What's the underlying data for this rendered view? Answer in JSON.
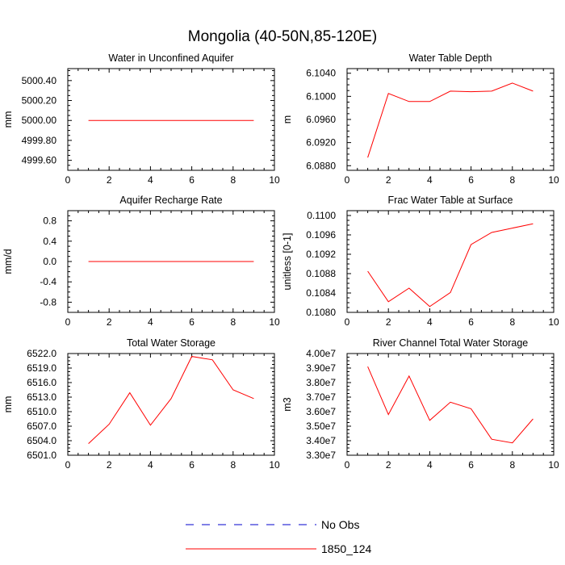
{
  "title": "Mongolia (40-50N,85-120E)",
  "legend": [
    {
      "label": "No Obs",
      "color": "#0000cc",
      "dashed": true
    },
    {
      "label": "1850_124",
      "color": "#ff0000",
      "dashed": false
    }
  ],
  "chart_data": [
    {
      "type": "line",
      "title": "Water in Unconfined Aquifer",
      "ylabel": "mm",
      "xlim": [
        0,
        10
      ],
      "ylim": [
        4999.5,
        5000.52
      ],
      "xticks": [
        0,
        2,
        4,
        6,
        8,
        10
      ],
      "xtick_labels": [
        "0",
        "2",
        "4",
        "6",
        "8",
        "10"
      ],
      "yticks": [
        4999.6,
        4999.8,
        5000.0,
        5000.2,
        5000.4
      ],
      "ytick_labels": [
        "4999.60",
        "4999.80",
        "5000.00",
        "5000.20",
        "5000.40"
      ],
      "series": [
        {
          "name": "1850_124",
          "x": [
            1,
            2,
            3,
            4,
            5,
            6,
            7,
            8,
            9
          ],
          "values": [
            5000.0,
            5000.0,
            5000.0,
            5000.0,
            5000.0,
            5000.0,
            5000.0,
            5000.0,
            5000.0
          ]
        }
      ]
    },
    {
      "type": "line",
      "title": "Water Table Depth",
      "ylabel": "m",
      "xlim": [
        0,
        10
      ],
      "ylim": [
        6.0872,
        6.1048
      ],
      "xticks": [
        0,
        2,
        4,
        6,
        8,
        10
      ],
      "xtick_labels": [
        "0",
        "2",
        "4",
        "6",
        "8",
        "10"
      ],
      "yticks": [
        6.088,
        6.092,
        6.096,
        6.1,
        6.104
      ],
      "ytick_labels": [
        "6.0880",
        "6.0920",
        "6.0960",
        "6.1000",
        "6.1040"
      ],
      "series": [
        {
          "name": "1850_124",
          "x": [
            1,
            2,
            3,
            4,
            5,
            6,
            7,
            8,
            9
          ],
          "values": [
            6.0894,
            6.1005,
            6.0991,
            6.0991,
            6.1009,
            6.1008,
            6.1009,
            6.1023,
            6.1009
          ]
        }
      ]
    },
    {
      "type": "line",
      "title": "Aquifer Recharge Rate",
      "ylabel": "mm/d",
      "xlim": [
        0,
        10
      ],
      "ylim": [
        -1.0,
        1.0
      ],
      "xticks": [
        0,
        2,
        4,
        6,
        8,
        10
      ],
      "xtick_labels": [
        "0",
        "2",
        "4",
        "6",
        "8",
        "10"
      ],
      "yticks": [
        -0.8,
        -0.4,
        0.0,
        0.4,
        0.8
      ],
      "ytick_labels": [
        "-0.8",
        "-0.4",
        "0.0",
        "0.4",
        "0.8"
      ],
      "series": [
        {
          "name": "1850_124",
          "x": [
            1,
            2,
            3,
            4,
            5,
            6,
            7,
            8,
            9
          ],
          "values": [
            0,
            0,
            0,
            0,
            0,
            0,
            0,
            0,
            0
          ]
        }
      ]
    },
    {
      "type": "line",
      "title": "Frac Water Table at Surface",
      "ylabel": "unitless [0-1]",
      "xlim": [
        0,
        10
      ],
      "ylim": [
        0.108,
        0.1101
      ],
      "xticks": [
        0,
        2,
        4,
        6,
        8,
        10
      ],
      "xtick_labels": [
        "0",
        "2",
        "4",
        "6",
        "8",
        "10"
      ],
      "yticks": [
        0.108,
        0.1084,
        0.1088,
        0.1092,
        0.1096,
        0.11
      ],
      "ytick_labels": [
        "0.1080",
        "0.1084",
        "0.1088",
        "0.1092",
        "0.1096",
        "0.1100"
      ],
      "series": [
        {
          "name": "1850_124",
          "x": [
            1,
            2,
            3,
            4,
            5,
            6,
            7,
            8,
            9
          ],
          "values": [
            0.10885,
            0.10822,
            0.1085,
            0.10812,
            0.10841,
            0.1094,
            0.10965,
            0.10974,
            0.10983
          ]
        }
      ]
    },
    {
      "type": "line",
      "title": "Total Water Storage",
      "ylabel": "mm",
      "xlim": [
        0,
        10
      ],
      "ylim": [
        6501.0,
        6522.0
      ],
      "xticks": [
        0,
        2,
        4,
        6,
        8,
        10
      ],
      "xtick_labels": [
        "0",
        "2",
        "4",
        "6",
        "8",
        "10"
      ],
      "yticks": [
        6501,
        6504,
        6507,
        6510,
        6513,
        6516,
        6519,
        6522
      ],
      "ytick_labels": [
        "6501.0",
        "6504.0",
        "6507.0",
        "6510.0",
        "6513.0",
        "6516.0",
        "6519.0",
        "6522.0"
      ],
      "series": [
        {
          "name": "1850_124",
          "x": [
            1,
            2,
            3,
            4,
            5,
            6,
            7,
            8,
            9
          ],
          "values": [
            6503.4,
            6507.4,
            6513.9,
            6507.2,
            6512.7,
            6521.4,
            6520.7,
            6514.5,
            6512.7
          ]
        }
      ]
    },
    {
      "type": "line",
      "title": "River Channel Total Water Storage",
      "ylabel": "m3",
      "xlim": [
        0,
        10
      ],
      "ylim": [
        33000000,
        40000000
      ],
      "xticks": [
        0,
        2,
        4,
        6,
        8,
        10
      ],
      "xtick_labels": [
        "0",
        "2",
        "4",
        "6",
        "8",
        "10"
      ],
      "yticks": [
        33000000,
        34000000,
        35000000,
        36000000,
        37000000,
        38000000,
        39000000,
        40000000
      ],
      "ytick_labels": [
        "3.30e7",
        "3.40e7",
        "3.50e7",
        "3.60e7",
        "3.70e7",
        "3.80e7",
        "3.90e7",
        "4.00e7"
      ],
      "series": [
        {
          "name": "1850_124",
          "x": [
            1,
            2,
            3,
            4,
            5,
            6,
            7,
            8,
            9
          ],
          "values": [
            39100000,
            35800000,
            38450000,
            35400000,
            36650000,
            36200000,
            34100000,
            33850000,
            35500000
          ]
        }
      ]
    }
  ]
}
